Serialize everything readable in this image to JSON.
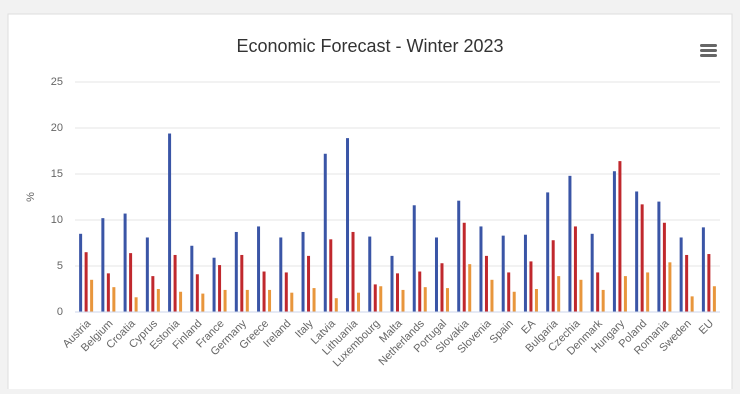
{
  "chart_data": {
    "type": "bar",
    "title": "Economic Forecast - Winter 2023",
    "y_label": "%",
    "categories": [
      "Austria",
      "Belgium",
      "Croatia",
      "Cyprus",
      "Estonia",
      "Finland",
      "France",
      "Germany",
      "Greece",
      "Ireland",
      "Italy",
      "Latvia",
      "Lithuania",
      "Luxembourg",
      "Malta",
      "Netherlands",
      "Portugal",
      "Slovakia",
      "Slovenia",
      "Spain",
      "EA",
      "Bulgaria",
      "Czechia",
      "Denmark",
      "Hungary",
      "Poland",
      "Romania",
      "Sweden",
      "EU"
    ],
    "series": [
      {
        "color": "#3a55a6",
        "values": [
          8.5,
          10.2,
          10.7,
          8.1,
          19.4,
          7.2,
          5.9,
          8.7,
          9.3,
          8.1,
          8.7,
          17.2,
          18.9,
          8.2,
          6.1,
          11.6,
          8.1,
          12.1,
          9.3,
          8.3,
          8.4,
          13.0,
          14.8,
          8.5,
          15.3,
          13.1,
          12.0,
          8.1,
          9.2
        ]
      },
      {
        "color": "#c0282d",
        "values": [
          6.5,
          4.2,
          6.4,
          3.9,
          6.2,
          4.1,
          5.1,
          6.2,
          4.4,
          4.3,
          6.1,
          7.9,
          8.7,
          3.0,
          4.2,
          4.4,
          5.3,
          9.7,
          6.1,
          4.3,
          5.5,
          7.8,
          9.3,
          4.3,
          16.4,
          11.7,
          9.7,
          6.2,
          6.3
        ]
      },
      {
        "color": "#e8963c",
        "values": [
          3.5,
          2.7,
          1.6,
          2.5,
          2.2,
          2.0,
          2.4,
          2.4,
          2.4,
          2.1,
          2.6,
          1.5,
          2.1,
          2.8,
          2.4,
          2.7,
          2.6,
          5.2,
          3.5,
          2.2,
          2.5,
          3.9,
          3.5,
          2.4,
          3.9,
          4.3,
          5.4,
          1.7,
          2.8
        ]
      }
    ],
    "ylim": [
      0,
      25
    ],
    "yticks": [
      0,
      5,
      10,
      15,
      20,
      25
    ],
    "grid": true
  }
}
